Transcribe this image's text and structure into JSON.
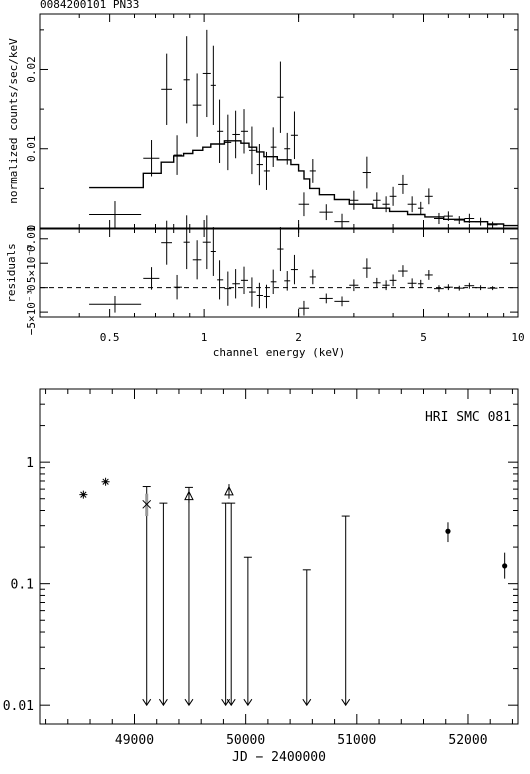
{
  "chart_data": [
    {
      "type": "scatter",
      "title": "0084200101 PN33",
      "xlabel": "channel energy (keV)",
      "ylabel": "normalized counts/sec/keV",
      "xscale": "log",
      "xlim": [
        0.3,
        10
      ],
      "ylim": [
        0,
        0.027
      ],
      "x_ticks": [
        0.5,
        1,
        2,
        5,
        10
      ],
      "x_tick_labels": [
        "0.5",
        "1",
        "2",
        "5",
        "10"
      ],
      "y_ticks": [
        0,
        0.01,
        0.02
      ],
      "y_tick_labels": [
        "0",
        "0.01",
        "0.02"
      ],
      "data": [
        {
          "x": 0.52,
          "xlo": 0.43,
          "xhi": 0.63,
          "y": 0.0017,
          "yerr": 0.0017
        },
        {
          "x": 0.68,
          "xlo": 0.64,
          "xhi": 0.72,
          "y": 0.0088,
          "yerr": 0.0023
        },
        {
          "x": 0.76,
          "xlo": 0.73,
          "xhi": 0.79,
          "y": 0.0175,
          "yerr": 0.0045
        },
        {
          "x": 0.82,
          "xlo": 0.8,
          "xhi": 0.85,
          "y": 0.0092,
          "yerr": 0.0025
        },
        {
          "x": 0.88,
          "xlo": 0.86,
          "xhi": 0.9,
          "y": 0.0187,
          "yerr": 0.0055
        },
        {
          "x": 0.95,
          "xlo": 0.92,
          "xhi": 0.98,
          "y": 0.0155,
          "yerr": 0.004
        },
        {
          "x": 1.02,
          "xlo": 0.99,
          "xhi": 1.05,
          "y": 0.0195,
          "yerr": 0.0055
        },
        {
          "x": 1.07,
          "xlo": 1.05,
          "xhi": 1.09,
          "y": 0.018,
          "yerr": 0.005
        },
        {
          "x": 1.12,
          "xlo": 1.1,
          "xhi": 1.15,
          "y": 0.0122,
          "yerr": 0.004
        },
        {
          "x": 1.19,
          "xlo": 1.16,
          "xhi": 1.22,
          "y": 0.0108,
          "yerr": 0.0035
        },
        {
          "x": 1.26,
          "xlo": 1.23,
          "xhi": 1.3,
          "y": 0.0118,
          "yerr": 0.003
        },
        {
          "x": 1.34,
          "xlo": 1.31,
          "xhi": 1.38,
          "y": 0.0122,
          "yerr": 0.0028
        },
        {
          "x": 1.42,
          "xlo": 1.39,
          "xhi": 1.46,
          "y": 0.0098,
          "yerr": 0.003
        },
        {
          "x": 1.5,
          "xlo": 1.47,
          "xhi": 1.54,
          "y": 0.008,
          "yerr": 0.0026
        },
        {
          "x": 1.58,
          "xlo": 1.55,
          "xhi": 1.62,
          "y": 0.0072,
          "yerr": 0.0024
        },
        {
          "x": 1.66,
          "xlo": 1.63,
          "xhi": 1.7,
          "y": 0.0102,
          "yerr": 0.0025
        },
        {
          "x": 1.75,
          "xlo": 1.71,
          "xhi": 1.79,
          "y": 0.0165,
          "yerr": 0.0045
        },
        {
          "x": 1.84,
          "xlo": 1.8,
          "xhi": 1.88,
          "y": 0.01,
          "yerr": 0.002
        },
        {
          "x": 1.94,
          "xlo": 1.89,
          "xhi": 1.99,
          "y": 0.0117,
          "yerr": 0.003
        },
        {
          "x": 2.08,
          "xlo": 2.0,
          "xhi": 2.16,
          "y": 0.003,
          "yerr": 0.0015
        },
        {
          "x": 2.22,
          "xlo": 2.17,
          "xhi": 2.27,
          "y": 0.0072,
          "yerr": 0.0015
        },
        {
          "x": 2.45,
          "xlo": 2.33,
          "xhi": 2.57,
          "y": 0.002,
          "yerr": 0.001
        },
        {
          "x": 2.75,
          "xlo": 2.6,
          "xhi": 2.9,
          "y": 0.0008,
          "yerr": 0.001
        },
        {
          "x": 3.0,
          "xlo": 2.9,
          "xhi": 3.1,
          "y": 0.0035,
          "yerr": 0.0012
        },
        {
          "x": 3.3,
          "xlo": 3.2,
          "xhi": 3.4,
          "y": 0.007,
          "yerr": 0.002
        },
        {
          "x": 3.55,
          "xlo": 3.45,
          "xhi": 3.65,
          "y": 0.0035,
          "yerr": 0.001
        },
        {
          "x": 3.8,
          "xlo": 3.7,
          "xhi": 3.9,
          "y": 0.003,
          "yerr": 0.001
        },
        {
          "x": 4.0,
          "xlo": 3.9,
          "xhi": 4.1,
          "y": 0.004,
          "yerr": 0.0012
        },
        {
          "x": 4.3,
          "xlo": 4.15,
          "xhi": 4.45,
          "y": 0.0055,
          "yerr": 0.0012
        },
        {
          "x": 4.6,
          "xlo": 4.45,
          "xhi": 4.75,
          "y": 0.003,
          "yerr": 0.001
        },
        {
          "x": 4.9,
          "xlo": 4.8,
          "xhi": 5.0,
          "y": 0.0025,
          "yerr": 0.0008
        },
        {
          "x": 5.2,
          "xlo": 5.05,
          "xhi": 5.35,
          "y": 0.004,
          "yerr": 0.001
        },
        {
          "x": 5.6,
          "xlo": 5.4,
          "xhi": 5.8,
          "y": 0.0012,
          "yerr": 0.0007
        },
        {
          "x": 6.0,
          "xlo": 5.8,
          "xhi": 6.2,
          "y": 0.0015,
          "yerr": 0.0006
        },
        {
          "x": 6.5,
          "xlo": 6.25,
          "xhi": 6.75,
          "y": 0.001,
          "yerr": 0.0005
        },
        {
          "x": 7.0,
          "xlo": 6.75,
          "xhi": 7.25,
          "y": 0.0012,
          "yerr": 0.0006
        },
        {
          "x": 7.6,
          "xlo": 7.3,
          "xhi": 7.9,
          "y": 0.0008,
          "yerr": 0.0005
        },
        {
          "x": 8.3,
          "xlo": 8.0,
          "xhi": 8.6,
          "y": 0.0004,
          "yerr": 0.0004
        }
      ],
      "model": [
        [
          0.43,
          0.0051
        ],
        [
          0.64,
          0.0051
        ],
        [
          0.64,
          0.0069
        ],
        [
          0.73,
          0.0069
        ],
        [
          0.73,
          0.0083
        ],
        [
          0.8,
          0.0083
        ],
        [
          0.8,
          0.0091
        ],
        [
          0.86,
          0.0091
        ],
        [
          0.86,
          0.0094
        ],
        [
          0.92,
          0.0094
        ],
        [
          0.92,
          0.0098
        ],
        [
          0.99,
          0.0098
        ],
        [
          0.99,
          0.0102
        ],
        [
          1.05,
          0.0102
        ],
        [
          1.05,
          0.0106
        ],
        [
          1.16,
          0.0106
        ],
        [
          1.16,
          0.011
        ],
        [
          1.31,
          0.011
        ],
        [
          1.31,
          0.0107
        ],
        [
          1.39,
          0.0107
        ],
        [
          1.39,
          0.0102
        ],
        [
          1.47,
          0.0102
        ],
        [
          1.47,
          0.0096
        ],
        [
          1.55,
          0.0096
        ],
        [
          1.55,
          0.009
        ],
        [
          1.71,
          0.009
        ],
        [
          1.71,
          0.0086
        ],
        [
          1.89,
          0.0086
        ],
        [
          1.89,
          0.008
        ],
        [
          2.0,
          0.008
        ],
        [
          2.0,
          0.0072
        ],
        [
          2.08,
          0.0072
        ],
        [
          2.08,
          0.0062
        ],
        [
          2.17,
          0.0062
        ],
        [
          2.17,
          0.005
        ],
        [
          2.33,
          0.005
        ],
        [
          2.33,
          0.0042
        ],
        [
          2.6,
          0.0042
        ],
        [
          2.6,
          0.0036
        ],
        [
          2.9,
          0.0036
        ],
        [
          2.9,
          0.003
        ],
        [
          3.45,
          0.003
        ],
        [
          3.45,
          0.0025
        ],
        [
          3.9,
          0.0025
        ],
        [
          3.9,
          0.0021
        ],
        [
          4.45,
          0.0021
        ],
        [
          4.45,
          0.0017
        ],
        [
          5.05,
          0.0017
        ],
        [
          5.05,
          0.0014
        ],
        [
          5.8,
          0.0014
        ],
        [
          5.8,
          0.0011
        ],
        [
          6.75,
          0.0011
        ],
        [
          6.75,
          0.0008
        ],
        [
          8.0,
          0.0008
        ],
        [
          8.0,
          0.0005
        ],
        [
          9.0,
          0.0005
        ],
        [
          9.0,
          0.0003
        ],
        [
          10.0,
          0.0003
        ]
      ]
    },
    {
      "type": "scatter",
      "xlabel": "channel energy (keV)",
      "ylabel": "residuals",
      "xscale": "log",
      "xlim": [
        0.3,
        10
      ],
      "ylim": [
        -0.006,
        0.012
      ],
      "y_ticks": [
        -0.005,
        0,
        0.005,
        0.01
      ],
      "y_tick_labels": [
        "−5×10⁻³",
        "0",
        "5×10⁻³",
        "0.01"
      ],
      "baseline": 0,
      "data": [
        {
          "x": 0.52,
          "xlo": 0.43,
          "xhi": 0.63,
          "y": -0.0034,
          "yerr": 0.0017
        },
        {
          "x": 0.68,
          "xlo": 0.64,
          "xhi": 0.72,
          "y": 0.0019,
          "yerr": 0.0023
        },
        {
          "x": 0.76,
          "xlo": 0.73,
          "xhi": 0.79,
          "y": 0.0092,
          "yerr": 0.0045
        },
        {
          "x": 0.82,
          "xlo": 0.8,
          "xhi": 0.85,
          "y": 0.0001,
          "yerr": 0.0025
        },
        {
          "x": 0.88,
          "xlo": 0.86,
          "xhi": 0.9,
          "y": 0.0093,
          "yerr": 0.0055
        },
        {
          "x": 0.95,
          "xlo": 0.92,
          "xhi": 0.98,
          "y": 0.0057,
          "yerr": 0.004
        },
        {
          "x": 1.02,
          "xlo": 0.99,
          "xhi": 1.05,
          "y": 0.0093,
          "yerr": 0.0055
        },
        {
          "x": 1.07,
          "xlo": 1.05,
          "xhi": 1.09,
          "y": 0.0074,
          "yerr": 0.005
        },
        {
          "x": 1.12,
          "xlo": 1.1,
          "xhi": 1.15,
          "y": 0.0016,
          "yerr": 0.004
        },
        {
          "x": 1.19,
          "xlo": 1.16,
          "xhi": 1.22,
          "y": -0.0002,
          "yerr": 0.0035
        },
        {
          "x": 1.26,
          "xlo": 1.23,
          "xhi": 1.3,
          "y": 0.0008,
          "yerr": 0.003
        },
        {
          "x": 1.34,
          "xlo": 1.31,
          "xhi": 1.38,
          "y": 0.0015,
          "yerr": 0.0028
        },
        {
          "x": 1.42,
          "xlo": 1.39,
          "xhi": 1.46,
          "y": -0.0009,
          "yerr": 0.003
        },
        {
          "x": 1.5,
          "xlo": 1.47,
          "xhi": 1.54,
          "y": -0.0016,
          "yerr": 0.0026
        },
        {
          "x": 1.58,
          "xlo": 1.55,
          "xhi": 1.62,
          "y": -0.0018,
          "yerr": 0.0024
        },
        {
          "x": 1.66,
          "xlo": 1.63,
          "xhi": 1.7,
          "y": 0.0012,
          "yerr": 0.0025
        },
        {
          "x": 1.75,
          "xlo": 1.71,
          "xhi": 1.79,
          "y": 0.0079,
          "yerr": 0.0045
        },
        {
          "x": 1.84,
          "xlo": 1.8,
          "xhi": 1.88,
          "y": 0.0014,
          "yerr": 0.002
        },
        {
          "x": 1.94,
          "xlo": 1.89,
          "xhi": 1.99,
          "y": 0.0037,
          "yerr": 0.003
        },
        {
          "x": 2.08,
          "xlo": 2.0,
          "xhi": 2.16,
          "y": -0.0042,
          "yerr": 0.0015
        },
        {
          "x": 2.22,
          "xlo": 2.17,
          "xhi": 2.27,
          "y": 0.0022,
          "yerr": 0.0015
        },
        {
          "x": 2.45,
          "xlo": 2.33,
          "xhi": 2.57,
          "y": -0.0022,
          "yerr": 0.001
        },
        {
          "x": 2.75,
          "xlo": 2.6,
          "xhi": 2.9,
          "y": -0.0028,
          "yerr": 0.001
        },
        {
          "x": 3.0,
          "xlo": 2.9,
          "xhi": 3.1,
          "y": 0.0005,
          "yerr": 0.0012
        },
        {
          "x": 3.3,
          "xlo": 3.2,
          "xhi": 3.4,
          "y": 0.004,
          "yerr": 0.002
        },
        {
          "x": 3.55,
          "xlo": 3.45,
          "xhi": 3.65,
          "y": 0.001,
          "yerr": 0.001
        },
        {
          "x": 3.8,
          "xlo": 3.7,
          "xhi": 3.9,
          "y": 0.0005,
          "yerr": 0.001
        },
        {
          "x": 4.0,
          "xlo": 3.9,
          "xhi": 4.1,
          "y": 0.0015,
          "yerr": 0.0012
        },
        {
          "x": 4.3,
          "xlo": 4.15,
          "xhi": 4.45,
          "y": 0.0034,
          "yerr": 0.0012
        },
        {
          "x": 4.6,
          "xlo": 4.45,
          "xhi": 4.75,
          "y": 0.0009,
          "yerr": 0.001
        },
        {
          "x": 4.9,
          "xlo": 4.8,
          "xhi": 5.0,
          "y": 0.0008,
          "yerr": 0.0008
        },
        {
          "x": 5.2,
          "xlo": 5.05,
          "xhi": 5.35,
          "y": 0.0026,
          "yerr": 0.001
        },
        {
          "x": 5.6,
          "xlo": 5.4,
          "xhi": 5.8,
          "y": -0.0002,
          "yerr": 0.0007
        },
        {
          "x": 6.0,
          "xlo": 5.8,
          "xhi": 6.2,
          "y": 0.0001,
          "yerr": 0.0006
        },
        {
          "x": 6.5,
          "xlo": 6.25,
          "xhi": 6.75,
          "y": -0.0001,
          "yerr": 0.0005
        },
        {
          "x": 7.0,
          "xlo": 6.75,
          "xhi": 7.25,
          "y": 0.0004,
          "yerr": 0.0006
        },
        {
          "x": 7.6,
          "xlo": 7.3,
          "xhi": 7.9,
          "y": 0.0,
          "yerr": 0.0005
        },
        {
          "x": 8.3,
          "xlo": 8.0,
          "xhi": 8.6,
          "y": -0.0001,
          "yerr": 0.0004
        }
      ]
    },
    {
      "type": "scatter",
      "annotation": "HRI SMC 081",
      "xlabel": "JD − 2400000",
      "ylabel": "",
      "yscale": "log",
      "xlim": [
        48150,
        52450
      ],
      "ylim": [
        0.007,
        4
      ],
      "x_ticks": [
        49000,
        50000,
        51000,
        52000
      ],
      "x_tick_labels": [
        "49000",
        "50000",
        "51000",
        "52000"
      ],
      "y_ticks": [
        0.01,
        0.1,
        1
      ],
      "y_tick_labels": [
        "0.01",
        "0.1",
        "1"
      ],
      "points": [
        {
          "x": 48540,
          "y": 0.54,
          "marker": "asterisk"
        },
        {
          "x": 48740,
          "y": 0.69,
          "marker": "asterisk"
        },
        {
          "x": 49110,
          "y": 0.45,
          "marker": "cross",
          "ylo": 0.36,
          "yhi": 0.55
        },
        {
          "x": 49490,
          "y": 0.53,
          "marker": "triangle",
          "ylo": 0.46,
          "yhi": 0.6
        },
        {
          "x": 49850,
          "y": 0.58,
          "marker": "triangle",
          "ylo": 0.5,
          "yhi": 0.66
        },
        {
          "x": 51820,
          "y": 0.27,
          "marker": "dot",
          "ylo": 0.22,
          "yhi": 0.32
        },
        {
          "x": 52330,
          "y": 0.14,
          "marker": "dot",
          "ylo": 0.11,
          "yhi": 0.18
        }
      ],
      "upper_limits": [
        {
          "x": 49110,
          "y": 0.63
        },
        {
          "x": 49260,
          "y": 0.46
        },
        {
          "x": 49490,
          "y": 0.62
        },
        {
          "x": 49820,
          "y": 0.46
        },
        {
          "x": 49870,
          "y": 0.46
        },
        {
          "x": 50020,
          "y": 0.165
        },
        {
          "x": 50550,
          "y": 0.13
        },
        {
          "x": 50900,
          "y": 0.36
        }
      ]
    }
  ]
}
